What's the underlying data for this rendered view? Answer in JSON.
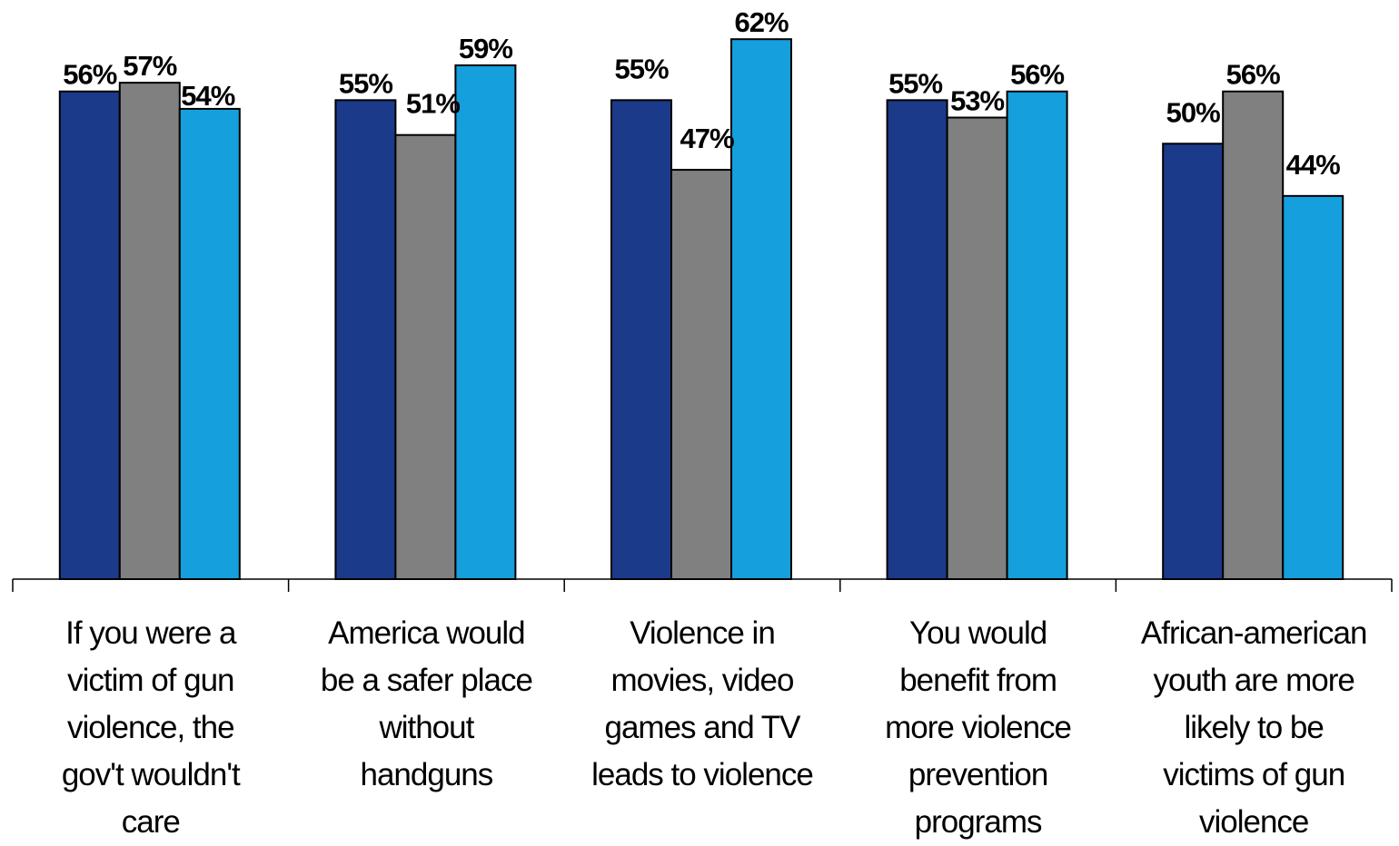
{
  "chart_data": {
    "type": "bar",
    "categories": [
      "If you were a victim of gun violence, the gov't wouldn't care",
      "America would be a safer place without handguns",
      "Violence in movies, video games and TV leads to violence",
      "You would benefit from more violence prevention programs",
      "African-american youth are more likely to be victims of gun violence"
    ],
    "category_lines": [
      [
        "If you were a",
        "victim of gun",
        "violence, the",
        "gov't wouldn't",
        "care"
      ],
      [
        "America would",
        "be a safer place",
        "without",
        "handguns"
      ],
      [
        "Violence in",
        "movies, video",
        "games and TV",
        "leads to violence"
      ],
      [
        "You would",
        "benefit from",
        "more violence",
        "prevention",
        "programs"
      ],
      [
        "African-american",
        "youth are more",
        "likely to be",
        "victims of gun",
        "violence"
      ]
    ],
    "series": [
      {
        "values": [
          56,
          55,
          55,
          55,
          50
        ],
        "labels": [
          "56%",
          "55%",
          "55%",
          "55%",
          "50%"
        ],
        "color": "#1c3a8a"
      },
      {
        "values": [
          57,
          51,
          47,
          53,
          56
        ],
        "labels": [
          "57%",
          "51%",
          "47%",
          "53%",
          "56%"
        ],
        "color": "#808080"
      },
      {
        "values": [
          54,
          59,
          62,
          56,
          44
        ],
        "labels": [
          "54%",
          "59%",
          "62%",
          "56%",
          "44%"
        ],
        "color": "#159fdc"
      }
    ],
    "ylim": [
      0,
      66.5
    ],
    "grid": false,
    "legend": "none"
  }
}
